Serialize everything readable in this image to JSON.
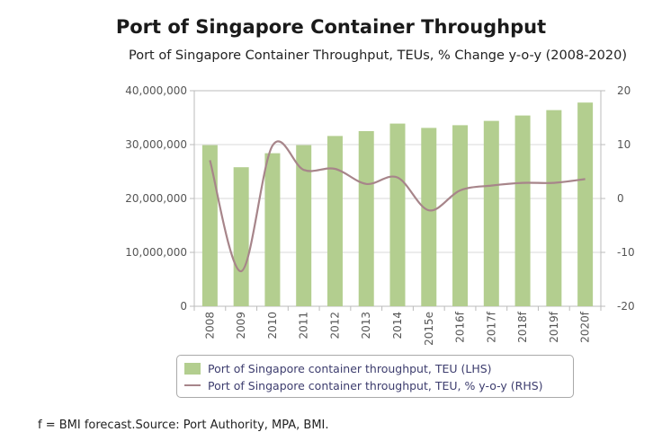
{
  "chart_data": {
    "type": "bar",
    "title": "Port of Singapore Container Throughput",
    "subtitle": "Port of Singapore Container Throughput, TEUs, % Change y-o-y (2008-2020)",
    "categories": [
      "2008",
      "2009",
      "2010",
      "2011",
      "2012",
      "2013",
      "2014",
      "2015e",
      "2016f",
      "2017f",
      "2018f",
      "2019f",
      "2020f"
    ],
    "series": [
      {
        "name": "Port of Singapore container throughput, TEU (LHS)",
        "type": "bar",
        "axis": "left",
        "values": [
          29900000,
          25800000,
          28400000,
          29900000,
          31600000,
          32500000,
          33900000,
          33100000,
          33600000,
          34400000,
          35400000,
          36400000,
          37800000
        ]
      },
      {
        "name": "Port of Singapore container throughput, TEU, % y-o-y (RHS)",
        "type": "line",
        "axis": "right",
        "values": [
          7.1,
          -13.5,
          9.8,
          5.3,
          5.5,
          2.7,
          3.9,
          -2.2,
          1.5,
          2.4,
          2.9,
          2.9,
          3.6
        ]
      }
    ],
    "y_left": {
      "min": 0,
      "max": 40000000,
      "ticks": [
        "0",
        "10,000,000",
        "20,000,000",
        "30,000,000",
        "40,000,000"
      ],
      "tick_values": [
        0,
        10000000,
        20000000,
        30000000,
        40000000
      ]
    },
    "y_right": {
      "min": -20,
      "max": 20,
      "ticks": [
        "-20",
        "-10",
        "0",
        "10",
        "20"
      ],
      "tick_values": [
        -20,
        -10,
        0,
        10,
        20
      ]
    },
    "xlabel": "",
    "ylabel": "",
    "legend_position": "bottom",
    "colors": {
      "bar": "#b3ce8f",
      "line": "#a7858a",
      "grid": "#d9d9d9",
      "axis": "#bbbbbb"
    }
  },
  "footnote": "f = BMI forecast.Source: Port Authority, MPA, BMI."
}
